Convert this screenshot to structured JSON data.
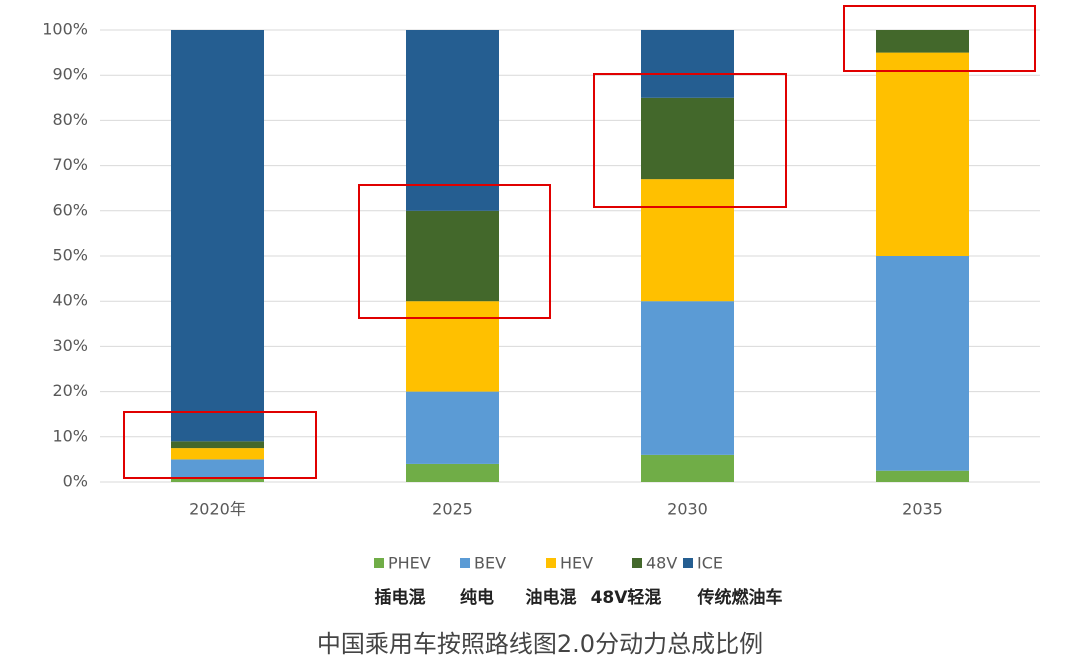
{
  "chart_data": {
    "type": "stacked_bar",
    "title": "中国乘用车按照路线图2.0分动力总成比例",
    "categories": [
      "2020年",
      "2025",
      "2030",
      "2035"
    ],
    "series": [
      {
        "name": "PHEV",
        "color": "#70ad47",
        "values": [
          1,
          4,
          6,
          2.5
        ]
      },
      {
        "name": "BEV",
        "color": "#5b9bd5",
        "values": [
          4,
          16,
          34,
          47.5
        ]
      },
      {
        "name": "HEV",
        "color": "#ffc000",
        "values": [
          2.5,
          20,
          27,
          45
        ]
      },
      {
        "name": "48V",
        "color": "#43682b",
        "values": [
          1.5,
          20,
          18,
          5
        ]
      },
      {
        "name": "ICE",
        "color": "#255e91",
        "values": [
          91,
          40,
          15,
          0
        ]
      }
    ],
    "legend_notes": [
      "插电混",
      "纯电",
      "油电混",
      "48V轻混",
      "传统燃油车"
    ],
    "ylim": [
      0,
      100
    ],
    "yticks": [
      {
        "value": 0,
        "label": "0%"
      },
      {
        "value": 10,
        "label": "10%"
      },
      {
        "value": 20,
        "label": "20%"
      },
      {
        "value": 30,
        "label": "30%"
      },
      {
        "value": 40,
        "label": "40%"
      },
      {
        "value": 50,
        "label": "50%"
      },
      {
        "value": 60,
        "label": "60%"
      },
      {
        "value": 70,
        "label": "70%"
      },
      {
        "value": 80,
        "label": "80%"
      },
      {
        "value": 90,
        "label": "90%"
      },
      {
        "value": 100,
        "label": "100%"
      }
    ],
    "grid": true
  }
}
